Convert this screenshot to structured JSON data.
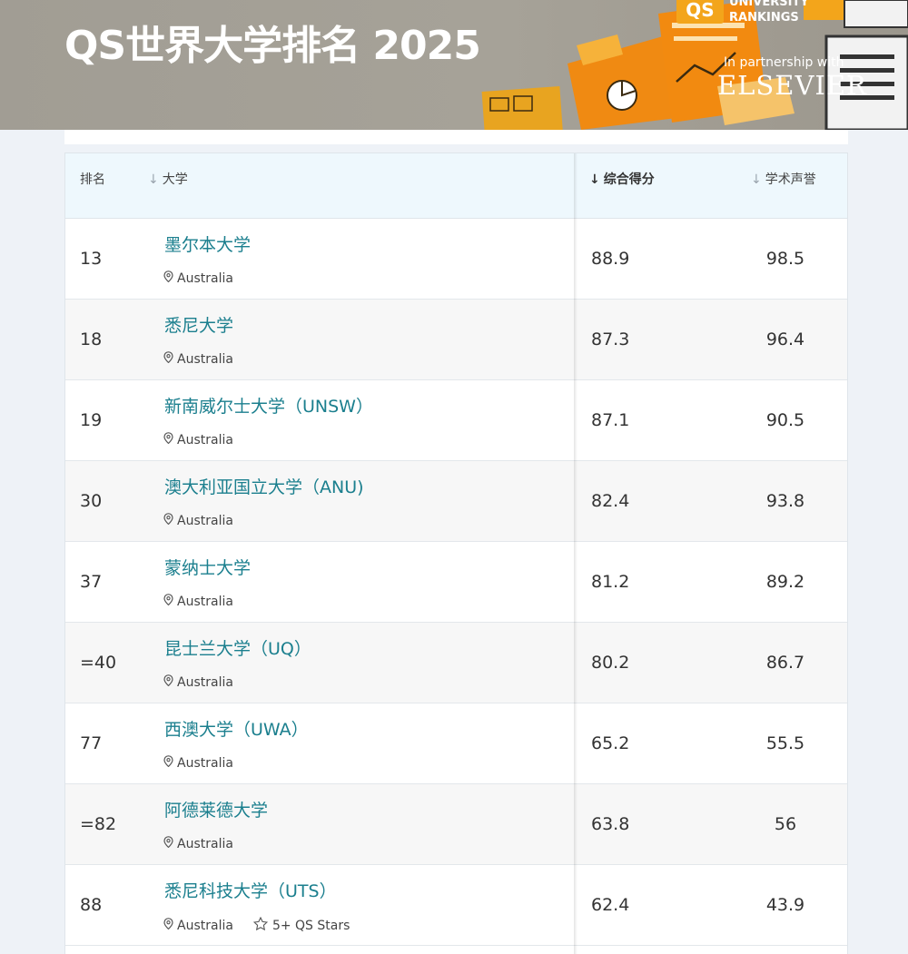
{
  "banner": {
    "title": "QS世界大学排名 2025",
    "logo_mark": "QS",
    "logo_line1": "UNIVERSITY",
    "logo_line2": "RANKINGS",
    "partner_text": "In partnership with",
    "partner_name": "ELSEVIER"
  },
  "table": {
    "headers": {
      "rank": "排名",
      "university": "大学",
      "overall": "综合得分",
      "academic": "学术声誉"
    },
    "rows": [
      {
        "rank": "13",
        "name": "墨尔本大学",
        "location": "Australia",
        "overall": "88.9",
        "academic": "98.5"
      },
      {
        "rank": "18",
        "name": "悉尼大学",
        "location": "Australia",
        "overall": "87.3",
        "academic": "96.4"
      },
      {
        "rank": "19",
        "name": "新南威尔士大学（UNSW）",
        "location": "Australia",
        "overall": "87.1",
        "academic": "90.5"
      },
      {
        "rank": "30",
        "name": "澳大利亚国立大学（ANU)",
        "location": "Australia",
        "overall": "82.4",
        "academic": "93.8"
      },
      {
        "rank": "37",
        "name": "蒙纳士大学",
        "location": "Australia",
        "overall": "81.2",
        "academic": "89.2"
      },
      {
        "rank": "=40",
        "name": "昆士兰大学（UQ）",
        "location": "Australia",
        "overall": "80.2",
        "academic": "86.7"
      },
      {
        "rank": "77",
        "name": "西澳大学（UWA）",
        "location": "Australia",
        "overall": "65.2",
        "academic": "55.5"
      },
      {
        "rank": "=82",
        "name": "阿德莱德大学",
        "location": "Australia",
        "overall": "63.8",
        "academic": "56"
      },
      {
        "rank": "88",
        "name": "悉尼科技大学（UTS）",
        "location": "Australia",
        "stars": "5+ QS Stars",
        "overall": "62.4",
        "academic": "43.9"
      }
    ]
  },
  "colors": {
    "link": "#1b7f8e",
    "header_bg": "#eef8fd",
    "logo_orange": "#f3a51b"
  }
}
